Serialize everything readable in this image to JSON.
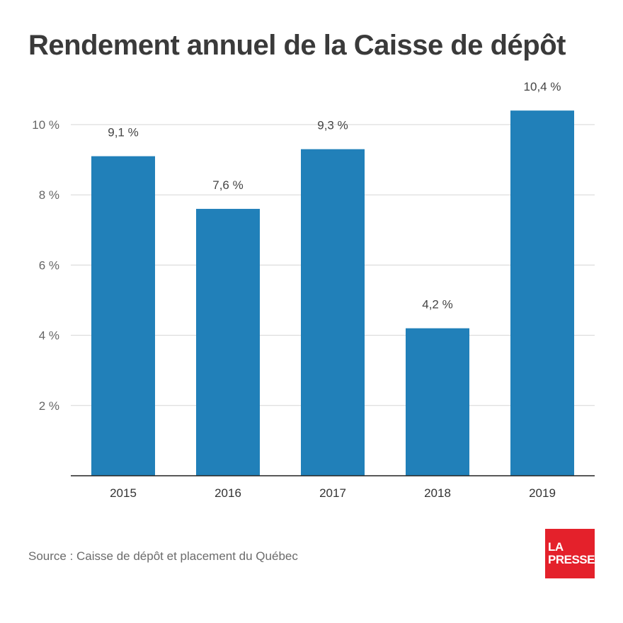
{
  "chart_data": {
    "type": "bar",
    "title": "Rendement annuel de la Caisse de dépôt",
    "categories": [
      "2015",
      "2016",
      "2017",
      "2018",
      "2019"
    ],
    "values": [
      9.1,
      7.6,
      9.3,
      4.2,
      10.4
    ],
    "data_labels": [
      "9,1 %",
      "7,6 %",
      "9,3 %",
      "4,2 %",
      "10,4 %"
    ],
    "yticks": [
      2,
      4,
      6,
      8,
      10
    ],
    "ytick_labels": [
      "2 %",
      "4 %",
      "6 %",
      "8 %",
      "10 %"
    ],
    "ylim": [
      0,
      10.4
    ],
    "xlabel": "",
    "ylabel": "",
    "grid": true,
    "bar_color": "#2180b9"
  },
  "source": "Source : Caisse de dépôt et placement du Québec",
  "logo": {
    "line1": "LA",
    "line2": "PRESSE",
    "color": "#e4212b"
  }
}
